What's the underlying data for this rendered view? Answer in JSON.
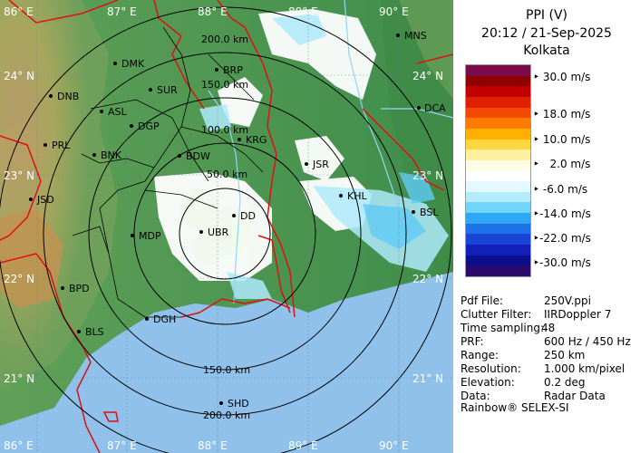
{
  "header": {
    "title": "PPI (V)",
    "datetime": "20:12 / 21-Sep-2025",
    "station": "Kolkata"
  },
  "legend": {
    "labels": [
      "30.0 m/s",
      "18.0 m/s",
      "10.0 m/s",
      "2.0 m/s",
      "-6.0 m/s",
      "-14.0 m/s",
      "-22.0 m/s",
      "-30.0 m/s"
    ],
    "colors": [
      "#7a0a4a",
      "#8e0000",
      "#c10000",
      "#e02000",
      "#f24a00",
      "#ff7a00",
      "#ffb000",
      "#ffd640",
      "#fff0a0",
      "#fffde8",
      "#ffffff",
      "#e4f8ff",
      "#b4ecfd",
      "#70d4fb",
      "#2ea8f5",
      "#1e72e8",
      "#1a46d8",
      "#1020b8",
      "#0c0f8c",
      "#2b0a6e"
    ]
  },
  "info": [
    {
      "key": "Pdf File:",
      "value": "250V.ppi"
    },
    {
      "key": "Clutter Filter:",
      "value": "IIRDoppler 7"
    },
    {
      "key": "Time sampling:",
      "value": "48"
    },
    {
      "key": "PRF:",
      "value": "600 Hz / 450 Hz"
    },
    {
      "key": "Range:",
      "value": "250 km"
    },
    {
      "key": "Resolution:",
      "value": "1.000 km/pixel"
    },
    {
      "key": "Elevation:",
      "value": "0.2 deg"
    },
    {
      "key": "Data:",
      "value": "Radar Data"
    }
  ],
  "footer": "Rainbow® SELEX-SI",
  "map": {
    "lon_labels_top": [
      "86° E",
      "87° E",
      "88° E",
      "89° E",
      "90° E"
    ],
    "lon_labels_bottom": [
      "86° E",
      "87° E",
      "88° E",
      "89° E",
      "90° E"
    ],
    "lat_labels_left": [
      "24° N",
      "23° N",
      "22° N",
      "21° N"
    ],
    "lat_labels_right": [
      "24° N",
      "23° N",
      "22° N",
      "21° N"
    ],
    "range_labels": [
      "50.0 km",
      "100.0 km",
      "150.0 km",
      "200.0 km"
    ],
    "range_labels_south": [
      "150.0 km",
      "200.0 km"
    ],
    "cities": [
      "MNS",
      "DMK",
      "BRP",
      "DNB",
      "SUR",
      "ASL",
      "DGP",
      "DCA",
      "KRG",
      "PRL",
      "BNK",
      "BDW",
      "JSR",
      "KHL",
      "JSD",
      "BSL",
      "MDP",
      "UBR",
      "DD",
      "BPD",
      "DGH",
      "BLS",
      "SHD"
    ]
  }
}
